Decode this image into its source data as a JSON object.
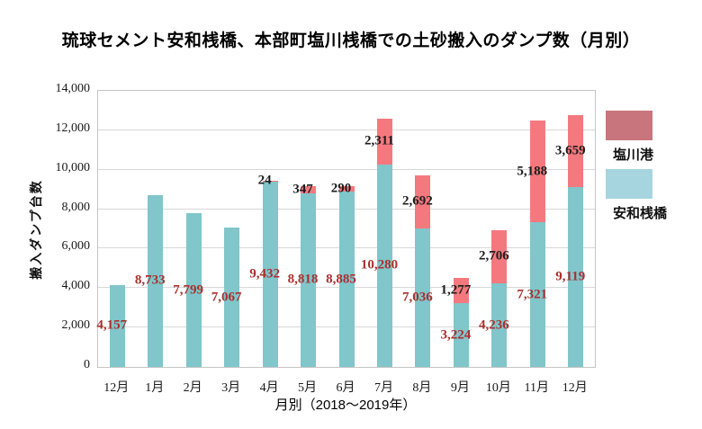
{
  "title": "琉球セメント安和桟橋、本部町塩川桟橋での土砂搬入のダンプ数（月別）",
  "chart_data": {
    "type": "bar",
    "stacked": true,
    "title": "琉球セメント安和桟橋、本部町塩川桟橋での土砂搬入のダンプ数（月別）",
    "xlabel": "月別（2018～2019年）",
    "ylabel": "搬入ダンプ台数",
    "ylim": [
      0,
      14000
    ],
    "ytick_step": 2000,
    "ytick_labels": [
      "0",
      "2,000",
      "4,000",
      "6,000",
      "8,000",
      "10,000",
      "12,000",
      "14,000"
    ],
    "grid": true,
    "legend_position": "right",
    "categories": [
      "12月",
      "1月",
      "2月",
      "3月",
      "4月",
      "5月",
      "6月",
      "7月",
      "8月",
      "9月",
      "10月",
      "11月",
      "12月"
    ],
    "series": [
      {
        "name": "安和桟橋",
        "color": "#80c6ca",
        "label_color": "#ab2e2e",
        "values": [
          4157,
          8733,
          7799,
          7067,
          9432,
          8818,
          8885,
          10280,
          7036,
          3224,
          4236,
          7321,
          9119
        ],
        "labels": [
          "4,157",
          "8,733",
          "7,799",
          "7,067",
          "9,432",
          "8,818",
          "8,885",
          "10,280",
          "7,036",
          "3,224",
          "4,236",
          "7,321",
          "9,119"
        ]
      },
      {
        "name": "塩川港",
        "color": "#f4797e",
        "label_color": "#1c1c1c",
        "values": [
          null,
          null,
          null,
          null,
          24,
          347,
          290,
          2311,
          2692,
          1277,
          2706,
          5188,
          3659
        ],
        "labels": [
          null,
          null,
          null,
          null,
          "24",
          "347",
          "290",
          "2,311",
          "2,692",
          "1,277",
          "2,706",
          "5,188",
          "3,659"
        ]
      }
    ]
  },
  "legend": {
    "items": [
      {
        "label": "塩川港",
        "color": "#c9757d"
      },
      {
        "label": "安和桟橋",
        "color": "#a7d5df"
      }
    ]
  }
}
